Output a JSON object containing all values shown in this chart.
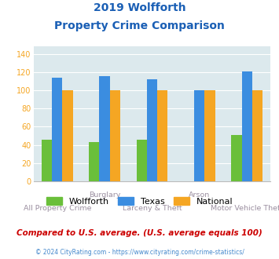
{
  "title_line1": "2019 Wolfforth",
  "title_line2": "Property Crime Comparison",
  "x_labels_top": [
    "",
    "Burglary",
    "",
    "Arson",
    ""
  ],
  "x_labels_bottom": [
    "All Property Crime",
    "",
    "Larceny & Theft",
    "",
    "Motor Vehicle Theft"
  ],
  "wolfforth": [
    46,
    43,
    46,
    0,
    51
  ],
  "texas": [
    114,
    116,
    112,
    100,
    121
  ],
  "national": [
    100,
    100,
    100,
    100,
    100
  ],
  "wolfforth_color": "#6abf3a",
  "texas_color": "#3b8de0",
  "national_color": "#f5a623",
  "title_color": "#1a5fb5",
  "background_color": "#dce9ed",
  "ylabel_vals": [
    0,
    20,
    40,
    60,
    80,
    100,
    120,
    140
  ],
  "ylim": [
    0,
    148
  ],
  "footer_text": "Compared to U.S. average. (U.S. average equals 100)",
  "copyright_text": "© 2024 CityRating.com - https://www.cityrating.com/crime-statistics/",
  "footer_color": "#cc0000",
  "copyright_color": "#4488cc",
  "legend_labels": [
    "Wolfforth",
    "Texas",
    "National"
  ],
  "xlabel_color": "#9b8fa0",
  "ytick_color": "#f5a623"
}
